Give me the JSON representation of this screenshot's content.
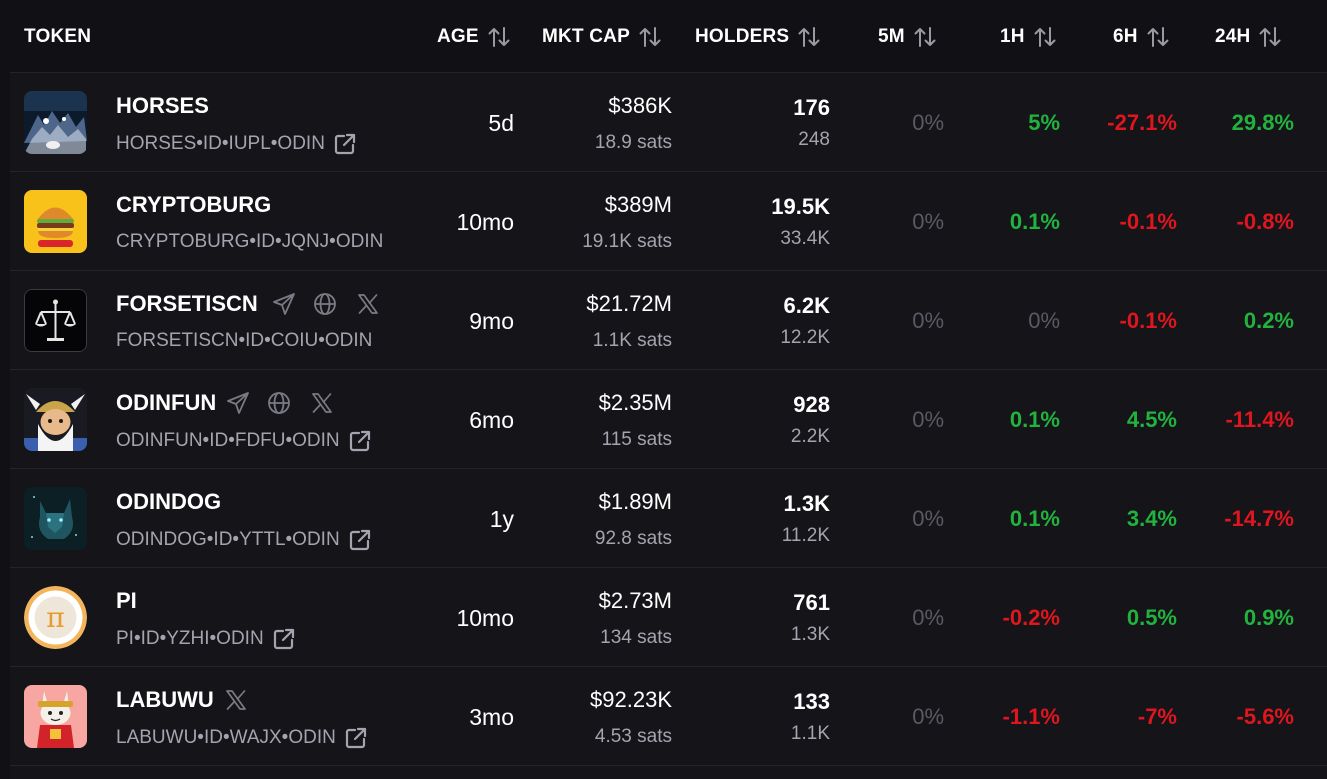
{
  "headers": {
    "token": "TOKEN",
    "age": "AGE",
    "mkt_cap": "MKT CAP",
    "holders": "HOLDERS",
    "m5": "5M",
    "h1": "1H",
    "h6": "6H",
    "h24": "24H"
  },
  "colors": {
    "positive": "#22b33e",
    "negative": "#e0161e",
    "neutral": "#5a5a63",
    "background": "#141419"
  },
  "rows": [
    {
      "name": "HORSES",
      "id": "HORSES•ID•IUPL•ODIN",
      "age": "5d",
      "mkt_cap": "$386K",
      "sats": "18.9 sats",
      "holders": "176",
      "holders_sub": "248",
      "m5": "0%",
      "h1": "5%",
      "h6": "-27.1%",
      "h24": "29.8%",
      "logo": "horses-logo"
    },
    {
      "name": "CRYPTOBURG",
      "id": "CRYPTOBURG•ID•JQNJ•ODIN",
      "age": "10mo",
      "mkt_cap": "$389M",
      "sats": "19.1K sats",
      "holders": "19.5K",
      "holders_sub": "33.4K",
      "m5": "0%",
      "h1": "0.1%",
      "h6": "-0.1%",
      "h24": "-0.8%",
      "logo": "burger-logo"
    },
    {
      "name": "FORSETISCN",
      "id": "FORSETISCN•ID•COIU•ODIN",
      "age": "9mo",
      "mkt_cap": "$21.72M",
      "sats": "1.1K sats",
      "holders": "6.2K",
      "holders_sub": "12.2K",
      "m5": "0%",
      "h1": "0%",
      "h6": "-0.1%",
      "h24": "0.2%",
      "logo": "scales-logo",
      "socials": [
        "telegram-icon",
        "globe-icon",
        "x-icon"
      ]
    },
    {
      "name": "ODINFUN",
      "id": "ODINFUN•ID•FDFU•ODIN",
      "age": "6mo",
      "mkt_cap": "$2.35M",
      "sats": "115 sats",
      "holders": "928",
      "holders_sub": "2.2K",
      "m5": "0%",
      "h1": "0.1%",
      "h6": "4.5%",
      "h24": "-11.4%",
      "logo": "viking-logo",
      "socials": [
        "telegram-icon",
        "globe-icon",
        "x-icon"
      ]
    },
    {
      "name": "ODINDOG",
      "id": "ODINDOG•ID•YTTL•ODIN",
      "age": "1y",
      "mkt_cap": "$1.89M",
      "sats": "92.8 sats",
      "holders": "1.3K",
      "holders_sub": "11.2K",
      "m5": "0%",
      "h1": "0.1%",
      "h6": "3.4%",
      "h24": "-14.7%",
      "logo": "wolf-logo"
    },
    {
      "name": "PI",
      "id": "PI•ID•YZHI•ODIN",
      "age": "10mo",
      "mkt_cap": "$2.73M",
      "sats": "134 sats",
      "holders": "761",
      "holders_sub": "1.3K",
      "m5": "0%",
      "h1": "-0.2%",
      "h6": "0.5%",
      "h24": "0.9%",
      "logo": "pi-logo"
    },
    {
      "name": "LABUWU",
      "id": "LABUWU•ID•WAJX•ODIN",
      "age": "3mo",
      "mkt_cap": "$92.23K",
      "sats": "4.53 sats",
      "holders": "133",
      "holders_sub": "1.1K",
      "m5": "0%",
      "h1": "-1.1%",
      "h6": "-7%",
      "h24": "-5.6%",
      "logo": "labuwu-logo",
      "socials": [
        "x-icon"
      ]
    }
  ]
}
